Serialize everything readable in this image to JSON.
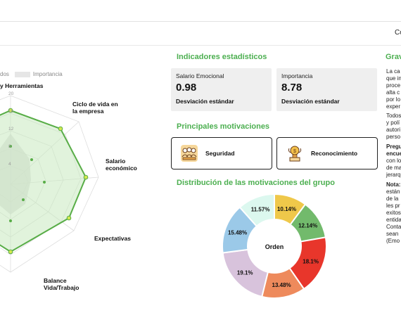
{
  "header": {
    "right_text": "Co"
  },
  "radar": {
    "legend": {
      "series1": "dos",
      "series2": "Importancia"
    },
    "ticks": [
      "20",
      "16",
      "12",
      "8",
      "4"
    ],
    "axes": [
      "y Herramientas",
      "Ciclo de vida en|la empresa",
      "Salario|económico",
      "Expectativas",
      "Balance|Vida/Trabajo"
    ]
  },
  "indicators": {
    "title": "Indicadores estadísticos",
    "boxes": [
      {
        "label": "Salario Emocional",
        "value": "0.98",
        "sub": "Desviación estándar"
      },
      {
        "label": "Importancia",
        "value": "8.78",
        "sub": "Desviación estándar"
      }
    ]
  },
  "motivations": {
    "title": "Principales motivaciones",
    "items": [
      {
        "label": "Seguridad",
        "icon": "team-security-icon"
      },
      {
        "label": "Reconocimiento",
        "icon": "trophy-award-icon"
      }
    ]
  },
  "distribution": {
    "title": "Distribución de las motivaciones del grupo",
    "center": "Orden"
  },
  "chart_data": {
    "type": "pie",
    "title": "Distribución de las motivaciones del grupo",
    "values": [
      10.14,
      12.14,
      18.1,
      13.48,
      19.1,
      15.48,
      11.57
    ],
    "labels": [
      "10.14%",
      "12.14%",
      "18.1%",
      "13.48%",
      "19.1%",
      "15.48%",
      "11.57%"
    ],
    "colors": [
      "#efc84a",
      "#72ba6c",
      "#e8362b",
      "#ee8a5c",
      "#d8c3dc",
      "#9bc9e8",
      "#dcf8ef"
    ],
    "donut": true
  },
  "right": {
    "title": "Grav",
    "p1": [
      "La ca",
      "que in",
      "proce",
      "alta c",
      "por lo",
      "exper"
    ],
    "p2": [
      "Todos",
      "y polí",
      "autori",
      "perso"
    ],
    "p3_bold": [
      "Pregu",
      "encue"
    ],
    "p3": [
      "con lo",
      "de ma",
      "jerarq"
    ],
    "p4_bold": "Nota:",
    "p4": [
      "están",
      "de la",
      "les pr",
      "exitos",
      "entida",
      "Conta",
      "sean",
      "(Emo"
    ]
  },
  "colors": {
    "accent": "#4caf50"
  }
}
